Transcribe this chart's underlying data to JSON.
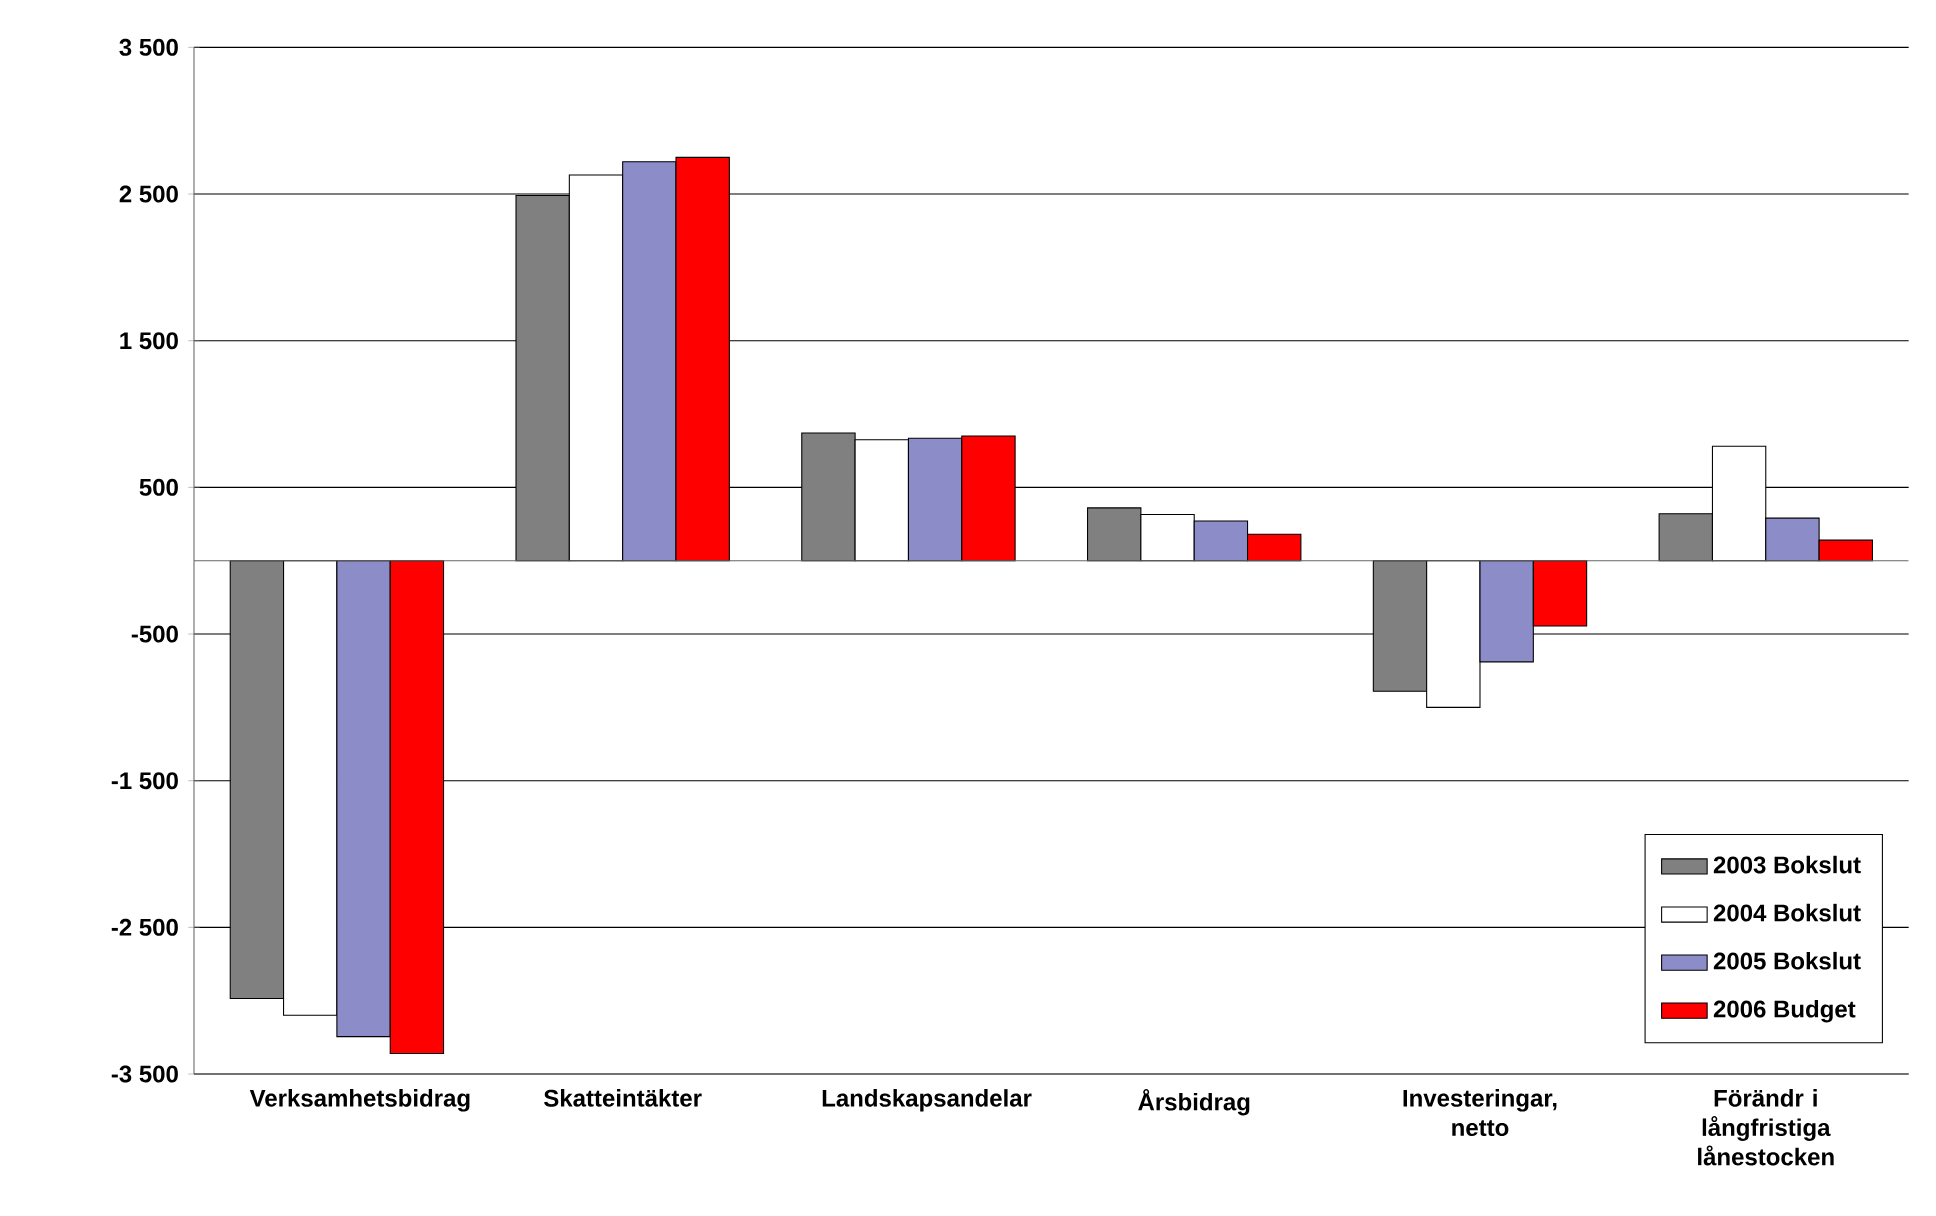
{
  "chart_data": {
    "type": "bar",
    "categories": [
      "Verksamhetsbidrag",
      "Skatteintäkter",
      "Landskapsandelar",
      "Årsbidrag",
      "Investeringar, netto",
      "Förändr i långfristiga lånestocken"
    ],
    "series": [
      {
        "name": "2003 Bokslut",
        "color": "#808080",
        "values": [
          -2985,
          2490,
          870,
          360,
          -890,
          320
        ]
      },
      {
        "name": "2004 Bokslut",
        "color": "#ffffff",
        "values": [
          -3100,
          2630,
          825,
          315,
          -1000,
          780
        ]
      },
      {
        "name": "2005 Bokslut",
        "color": "#8c8cc8",
        "values": [
          -3245,
          2720,
          835,
          270,
          -690,
          290
        ]
      },
      {
        "name": "2006 Budget",
        "color": "#ff0000",
        "values": [
          -3360,
          2750,
          850,
          180,
          -445,
          140
        ]
      }
    ],
    "ylim": [
      -3500,
      3500
    ],
    "yticks": [
      {
        "value": -3500,
        "label": "-3 500"
      },
      {
        "value": -2500,
        "label": "-2 500"
      },
      {
        "value": -1500,
        "label": "-1 500"
      },
      {
        "value": -500,
        "label": "-500"
      },
      {
        "value": 500,
        "label": "500"
      },
      {
        "value": 1500,
        "label": "1 500"
      },
      {
        "value": 2500,
        "label": "2 500"
      },
      {
        "value": 3500,
        "label": "3 500"
      }
    ],
    "grid": "y",
    "legend": "bottom right"
  }
}
